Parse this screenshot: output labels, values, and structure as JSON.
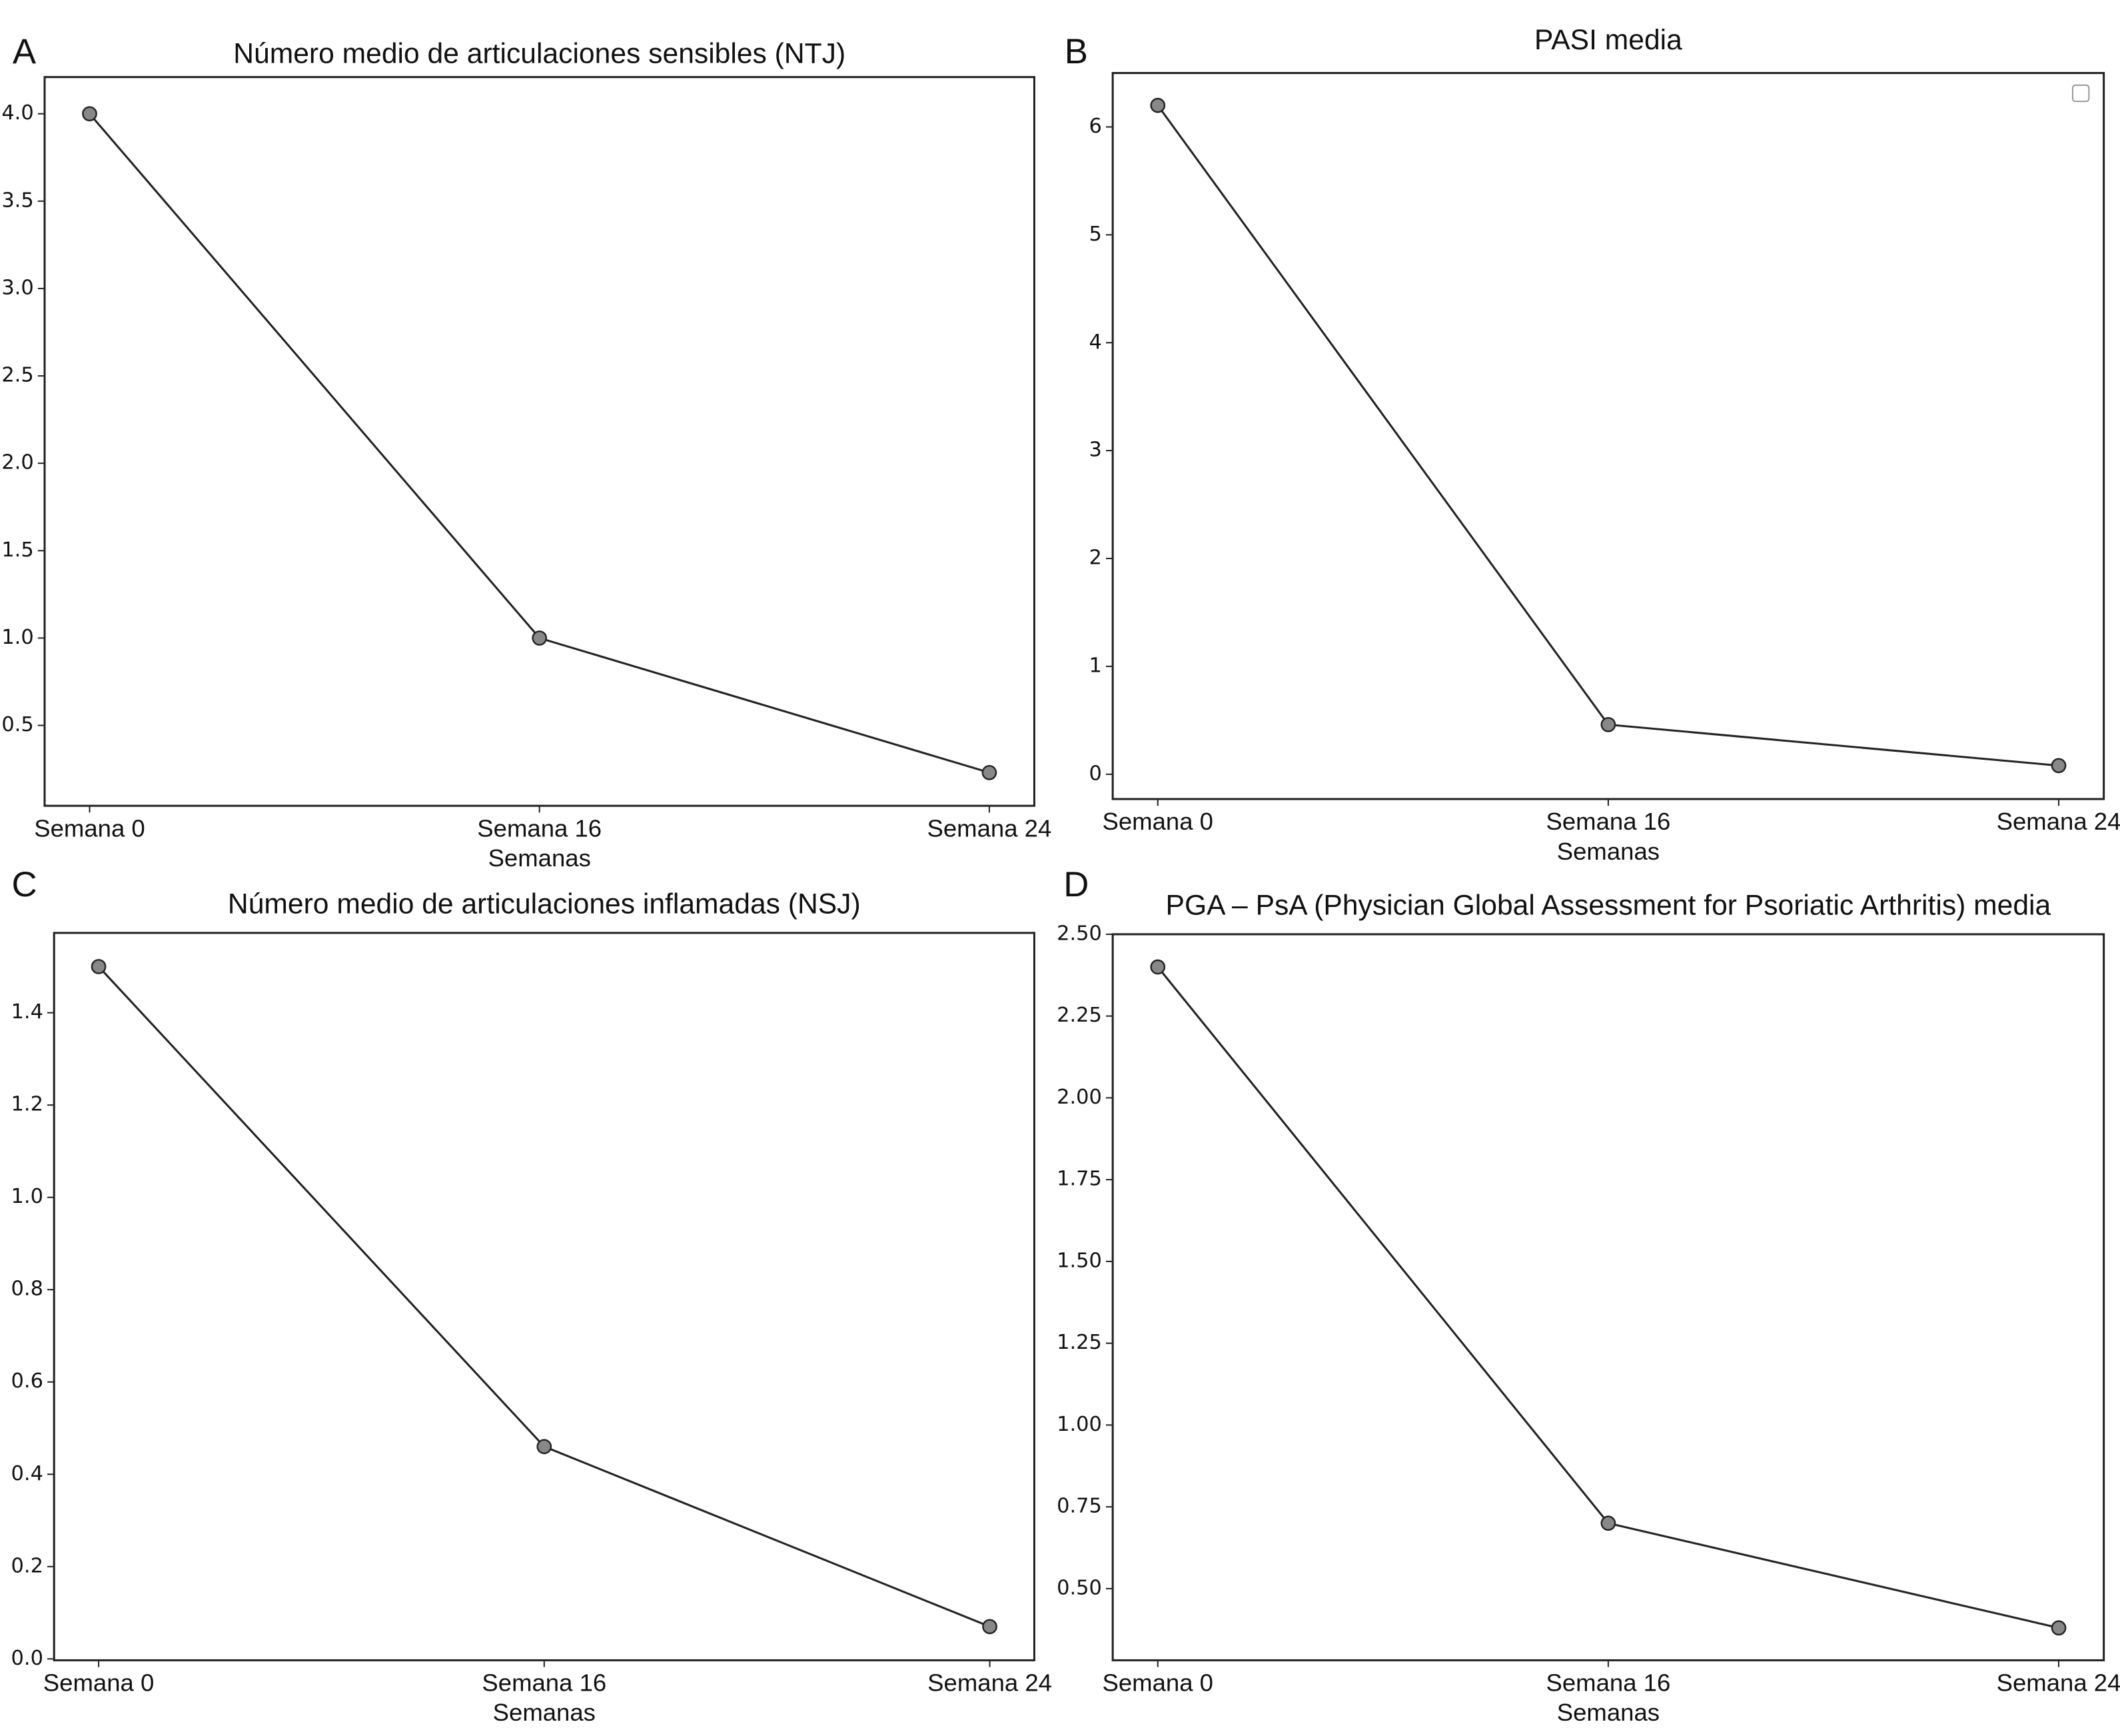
{
  "chart_data": [
    {
      "type": "line",
      "panel": "A",
      "title": "Número medio de articulaciones sensibles (NTJ)",
      "xlabel": "Semanas",
      "categories": [
        "Semana 0",
        "Semana 16",
        "Semana 24"
      ],
      "values": [
        4.0,
        1.0,
        0.23
      ],
      "color": "#222222",
      "marker_color": "#888888",
      "ylim": [
        0.04,
        4.21
      ],
      "yticks": [
        0.5,
        {
          "value": 1,
          "label": "1.0"
        },
        1.5,
        {
          "value": 2,
          "label": "2.0"
        },
        2.5,
        {
          "value": 3,
          "label": "3.0"
        },
        3.5,
        {
          "value": 4,
          "label": "4.0"
        }
      ]
    },
    {
      "type": "line",
      "panel": "B",
      "title": "PASI media",
      "xlabel": "Semanas",
      "categories": [
        "Semana 0",
        "Semana 16",
        "Semana 24"
      ],
      "values": [
        6.2,
        0.46,
        0.08
      ],
      "color": "#222222",
      "marker_color": "#888888",
      "ylim": [
        -0.23,
        6.5
      ],
      "yticks": [
        0,
        1,
        2,
        3,
        4,
        5,
        6
      ]
    },
    {
      "type": "line",
      "panel": "C",
      "title": "Número medio de articulaciones inflamadas (NSJ)",
      "xlabel": "Semanas",
      "categories": [
        "Semana 0",
        "Semana 16",
        "Semana 24"
      ],
      "values": [
        1.5,
        0.46,
        0.07
      ],
      "color": "#222222",
      "marker_color": "#888888",
      "ylim": [
        -0.003,
        1.573
      ],
      "yticks": [
        {
          "value": 0,
          "label": "0.0"
        },
        0.2,
        0.4,
        0.6,
        0.8,
        {
          "value": 1,
          "label": "1.0"
        },
        1.2,
        1.4
      ]
    },
    {
      "type": "line",
      "panel": "D",
      "title": "PGA – PsA (Physician Global Assessment for Psoriatic Arthritis) media",
      "xlabel": "Semanas",
      "categories": [
        "Semana 0",
        "Semana 16",
        "Semana 24"
      ],
      "values": [
        2.4,
        0.7,
        0.38
      ],
      "color": "#222222",
      "marker_color": "#888888",
      "ylim": [
        0.281,
        2.5
      ],
      "yticks": [
        {
          "value": 0.5,
          "label": "0.50"
        },
        {
          "value": 0.75,
          "label": "0.75"
        },
        {
          "value": 1,
          "label": "1.00"
        },
        {
          "value": 1.25,
          "label": "1.25"
        },
        {
          "value": 1.5,
          "label": "1.50"
        },
        {
          "value": 1.75,
          "label": "1.75"
        },
        {
          "value": 2,
          "label": "2.00"
        },
        {
          "value": 2.25,
          "label": "2.25"
        },
        {
          "value": 2.5,
          "label": "2.50"
        }
      ]
    }
  ]
}
